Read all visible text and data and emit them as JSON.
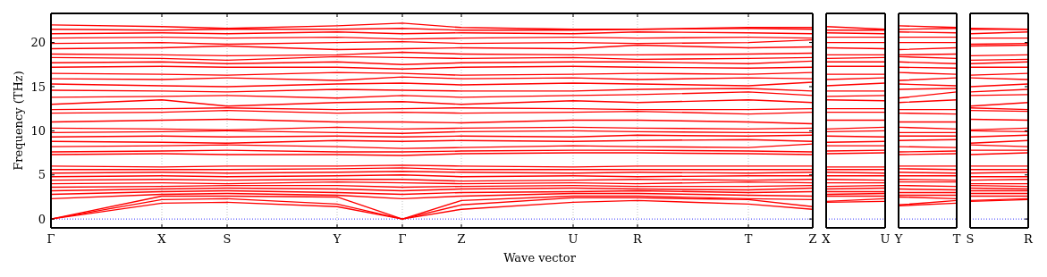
{
  "chart_data": [
    {
      "type": "line",
      "xlabel": "Wave vector",
      "ylabel": "Frequency (THz)",
      "color": "#ff0000",
      "line_style": "solid",
      "grid": "x",
      "ylim": [
        -1,
        23.3
      ],
      "yticks": [
        0,
        5,
        10,
        15,
        20
      ],
      "categories": [
        "Γ",
        "X",
        "S",
        "Y",
        "Γ",
        "Z",
        "U",
        "R",
        "T",
        "Z"
      ],
      "ref_lines": [
        {
          "axis": "y",
          "value": 0,
          "color": "#0000ff",
          "line_style": "dotted"
        }
      ],
      "series": [
        {
          "values": [
            0,
            1.8,
            1.9,
            1.4,
            0,
            1.1,
            1.9,
            2.1,
            1.7,
            1.1
          ]
        },
        {
          "values": [
            0,
            2.2,
            2.3,
            1.7,
            0,
            1.6,
            2.4,
            2.4,
            2.2,
            1.4
          ]
        },
        {
          "values": [
            0,
            2.6,
            2.6,
            2.5,
            0,
            2.1,
            2.6,
            2.6,
            2.3,
            2.2
          ]
        },
        {
          "values": [
            2.3,
            2.8,
            2.9,
            2.7,
            2.3,
            2.6,
            2.9,
            2.9,
            2.7,
            2.6
          ]
        },
        {
          "values": [
            2.8,
            3.1,
            3.2,
            3.0,
            2.8,
            3.0,
            3.1,
            3.2,
            3.0,
            3.1
          ]
        },
        {
          "values": [
            3.2,
            3.4,
            3.5,
            3.4,
            3.2,
            3.4,
            3.5,
            3.4,
            3.3,
            3.5
          ]
        },
        {
          "values": [
            3.6,
            3.7,
            3.8,
            3.8,
            3.6,
            3.7,
            3.8,
            3.7,
            3.7,
            3.8
          ]
        },
        {
          "values": [
            4.0,
            4.1,
            4.0,
            4.2,
            4.1,
            4.0,
            4.1,
            4.0,
            4.2,
            4.1
          ]
        },
        {
          "values": [
            4.4,
            4.5,
            4.4,
            4.5,
            4.5,
            4.3,
            4.4,
            4.5,
            4.4,
            4.5
          ]
        },
        {
          "values": [
            4.8,
            4.9,
            4.8,
            4.9,
            5.0,
            4.8,
            4.9,
            4.8,
            4.9,
            4.9
          ]
        },
        {
          "values": [
            5.2,
            5.3,
            5.2,
            5.3,
            5.4,
            5.3,
            5.2,
            5.3,
            5.2,
            5.3
          ]
        },
        {
          "values": [
            5.6,
            5.6,
            5.6,
            5.7,
            5.8,
            5.6,
            5.6,
            5.6,
            5.6,
            5.6
          ]
        },
        {
          "values": [
            6.0,
            5.9,
            6.0,
            6.0,
            6.1,
            6.0,
            5.9,
            6.0,
            6.0,
            6.0
          ]
        },
        {
          "values": [
            7.3,
            7.4,
            7.3,
            7.3,
            7.2,
            7.4,
            7.5,
            7.5,
            7.4,
            7.3
          ]
        },
        {
          "values": [
            7.6,
            7.7,
            7.8,
            7.6,
            7.6,
            7.7,
            7.8,
            7.8,
            7.7,
            7.6
          ]
        },
        {
          "values": [
            8.2,
            8.3,
            8.4,
            8.2,
            8.0,
            8.1,
            8.3,
            8.2,
            8.1,
            8.5
          ]
        },
        {
          "values": [
            8.8,
            8.7,
            8.6,
            8.9,
            8.8,
            8.9,
            8.8,
            8.9,
            9.0,
            8.8
          ]
        },
        {
          "values": [
            9.3,
            9.4,
            9.3,
            9.4,
            9.3,
            9.4,
            9.3,
            9.5,
            9.4,
            9.5
          ]
        },
        {
          "values": [
            9.8,
            9.9,
            10.0,
            9.8,
            9.7,
            9.9,
            10.0,
            9.9,
            9.8,
            9.8
          ]
        },
        {
          "values": [
            10.3,
            10.2,
            10.1,
            10.4,
            10.2,
            10.3,
            10.4,
            10.3,
            10.2,
            10.3
          ]
        },
        {
          "values": [
            11.0,
            11.2,
            11.3,
            11.0,
            11.0,
            10.9,
            11.2,
            11.2,
            11.0,
            10.8
          ]
        },
        {
          "values": [
            12.0,
            12.1,
            12.3,
            12.0,
            12.1,
            12.0,
            12.1,
            12.2,
            11.9,
            12.1
          ]
        },
        {
          "values": [
            12.4,
            12.5,
            12.6,
            12.4,
            12.5,
            12.6,
            12.5,
            12.4,
            12.4,
            12.5
          ]
        },
        {
          "values": [
            13.0,
            13.5,
            12.8,
            13.2,
            13.3,
            13.0,
            13.4,
            13.2,
            13.5,
            13.2
          ]
        },
        {
          "values": [
            13.8,
            13.9,
            14.0,
            13.7,
            14.0,
            13.8,
            14.0,
            14.1,
            14.4,
            14.0
          ]
        },
        {
          "values": [
            14.6,
            14.5,
            14.4,
            14.7,
            14.6,
            14.5,
            14.5,
            14.7,
            14.8,
            14.5
          ]
        },
        {
          "values": [
            15.3,
            15.1,
            15.0,
            15.3,
            15.4,
            15.2,
            15.4,
            15.3,
            15.1,
            15.5
          ]
        },
        {
          "values": [
            15.9,
            15.8,
            16.0,
            15.7,
            16.1,
            15.9,
            16.0,
            15.8,
            16.0,
            15.9
          ]
        },
        {
          "values": [
            16.5,
            16.4,
            16.3,
            16.6,
            16.5,
            16.3,
            16.4,
            16.5,
            16.4,
            16.6
          ]
        },
        {
          "values": [
            17.2,
            17.3,
            17.2,
            17.2,
            17.0,
            17.2,
            17.3,
            17.2,
            17.1,
            17.2
          ]
        },
        {
          "values": [
            17.7,
            17.8,
            17.6,
            17.8,
            17.5,
            17.7,
            17.8,
            17.8,
            17.6,
            17.9
          ]
        },
        {
          "values": [
            18.3,
            18.2,
            18.0,
            18.4,
            18.3,
            18.2,
            18.3,
            18.1,
            18.2,
            18.3
          ]
        },
        {
          "values": [
            18.7,
            18.6,
            18.5,
            18.6,
            18.9,
            18.7,
            18.6,
            18.6,
            18.7,
            18.8
          ]
        },
        {
          "values": [
            19.3,
            19.4,
            19.6,
            19.2,
            19.3,
            19.4,
            19.3,
            19.7,
            19.4,
            19.5
          ]
        },
        {
          "values": [
            19.9,
            20.0,
            19.8,
            20.0,
            20.1,
            19.9,
            20.0,
            19.9,
            20.0,
            20.3
          ]
        },
        {
          "values": [
            20.5,
            20.6,
            20.5,
            20.6,
            20.4,
            20.5,
            20.6,
            20.5,
            20.6,
            20.5
          ]
        },
        {
          "values": [
            21.0,
            21.1,
            21.0,
            21.2,
            21.0,
            21.1,
            21.0,
            21.2,
            21.1,
            21.0
          ]
        },
        {
          "values": [
            21.5,
            21.4,
            21.5,
            21.5,
            21.6,
            21.4,
            21.4,
            21.5,
            21.6,
            21.5
          ]
        },
        {
          "values": [
            22.0,
            21.8,
            21.6,
            21.9,
            22.2,
            21.7,
            21.5,
            21.5,
            21.7,
            21.7
          ]
        }
      ]
    },
    {
      "type": "line",
      "color": "#ff0000",
      "line_style": "solid",
      "tick_labels": "x",
      "ylim": [
        -1,
        23.3
      ],
      "categories": [
        "X",
        "U"
      ],
      "ref_lines": [
        {
          "axis": "y",
          "value": 0,
          "color": "#0000ff",
          "line_style": "dotted"
        }
      ],
      "series": [
        {
          "values": [
            1.9,
            2.0
          ]
        },
        {
          "values": [
            2.0,
            2.3
          ]
        },
        {
          "values": [
            2.6,
            2.6
          ]
        },
        {
          "values": [
            2.8,
            2.9
          ]
        },
        {
          "values": [
            3.1,
            3.1
          ]
        },
        {
          "values": [
            3.4,
            3.5
          ]
        },
        {
          "values": [
            3.7,
            3.8
          ]
        },
        {
          "values": [
            4.1,
            4.1
          ]
        },
        {
          "values": [
            4.5,
            4.4
          ]
        },
        {
          "values": [
            4.9,
            4.9
          ]
        },
        {
          "values": [
            5.3,
            5.2
          ]
        },
        {
          "values": [
            5.6,
            5.6
          ]
        },
        {
          "values": [
            5.9,
            5.9
          ]
        },
        {
          "values": [
            7.4,
            7.5
          ]
        },
        {
          "values": [
            7.7,
            7.8
          ]
        },
        {
          "values": [
            8.3,
            8.3
          ]
        },
        {
          "values": [
            8.7,
            8.8
          ]
        },
        {
          "values": [
            9.4,
            9.3
          ]
        },
        {
          "values": [
            9.9,
            10.0
          ]
        },
        {
          "values": [
            10.2,
            10.4
          ]
        },
        {
          "values": [
            11.2,
            11.2
          ]
        },
        {
          "values": [
            12.1,
            12.1
          ]
        },
        {
          "values": [
            12.5,
            12.5
          ]
        },
        {
          "values": [
            13.5,
            13.4
          ]
        },
        {
          "values": [
            13.9,
            14.0
          ]
        },
        {
          "values": [
            14.5,
            14.5
          ]
        },
        {
          "values": [
            15.1,
            15.4
          ]
        },
        {
          "values": [
            15.8,
            16.0
          ]
        },
        {
          "values": [
            16.4,
            16.4
          ]
        },
        {
          "values": [
            17.3,
            17.3
          ]
        },
        {
          "values": [
            17.8,
            17.8
          ]
        },
        {
          "values": [
            18.2,
            18.3
          ]
        },
        {
          "values": [
            18.6,
            18.6
          ]
        },
        {
          "values": [
            19.4,
            19.3
          ]
        },
        {
          "values": [
            20.0,
            20.0
          ]
        },
        {
          "values": [
            20.6,
            20.6
          ]
        },
        {
          "values": [
            21.1,
            21.0
          ]
        },
        {
          "values": [
            21.4,
            21.4
          ]
        },
        {
          "values": [
            21.8,
            21.5
          ]
        }
      ]
    },
    {
      "type": "line",
      "color": "#ff0000",
      "line_style": "solid",
      "tick_labels": "x",
      "ylim": [
        -1,
        23.3
      ],
      "categories": [
        "Y",
        "T"
      ],
      "ref_lines": [
        {
          "axis": "y",
          "value": 0,
          "color": "#0000ff",
          "line_style": "dotted"
        }
      ],
      "series": [
        {
          "values": [
            1.5,
            1.8
          ]
        },
        {
          "values": [
            1.6,
            2.1
          ]
        },
        {
          "values": [
            2.5,
            2.3
          ]
        },
        {
          "values": [
            2.7,
            2.7
          ]
        },
        {
          "values": [
            3.0,
            3.0
          ]
        },
        {
          "values": [
            3.4,
            3.3
          ]
        },
        {
          "values": [
            3.8,
            3.7
          ]
        },
        {
          "values": [
            4.2,
            4.2
          ]
        },
        {
          "values": [
            4.5,
            4.4
          ]
        },
        {
          "values": [
            4.9,
            4.9
          ]
        },
        {
          "values": [
            5.3,
            5.2
          ]
        },
        {
          "values": [
            5.7,
            5.6
          ]
        },
        {
          "values": [
            6.0,
            6.0
          ]
        },
        {
          "values": [
            7.3,
            7.4
          ]
        },
        {
          "values": [
            7.6,
            7.7
          ]
        },
        {
          "values": [
            8.2,
            8.1
          ]
        },
        {
          "values": [
            8.9,
            9.0
          ]
        },
        {
          "values": [
            9.4,
            9.4
          ]
        },
        {
          "values": [
            9.8,
            9.8
          ]
        },
        {
          "values": [
            10.4,
            10.2
          ]
        },
        {
          "values": [
            11.0,
            11.0
          ]
        },
        {
          "values": [
            12.0,
            11.9
          ]
        },
        {
          "values": [
            12.4,
            12.4
          ]
        },
        {
          "values": [
            13.2,
            13.5
          ]
        },
        {
          "values": [
            13.7,
            14.4
          ]
        },
        {
          "values": [
            14.7,
            14.8
          ]
        },
        {
          "values": [
            15.3,
            15.1
          ]
        },
        {
          "values": [
            15.7,
            16.0
          ]
        },
        {
          "values": [
            16.6,
            16.4
          ]
        },
        {
          "values": [
            17.2,
            17.1
          ]
        },
        {
          "values": [
            17.8,
            17.6
          ]
        },
        {
          "values": [
            18.4,
            18.2
          ]
        },
        {
          "values": [
            18.6,
            18.7
          ]
        },
        {
          "values": [
            19.2,
            19.4
          ]
        },
        {
          "values": [
            20.0,
            20.0
          ]
        },
        {
          "values": [
            20.6,
            20.6
          ]
        },
        {
          "values": [
            21.2,
            21.1
          ]
        },
        {
          "values": [
            21.5,
            21.6
          ]
        },
        {
          "values": [
            21.9,
            21.7
          ]
        }
      ]
    },
    {
      "type": "line",
      "color": "#ff0000",
      "line_style": "solid",
      "tick_labels": "x",
      "ylim": [
        -1,
        23.3
      ],
      "yticks": [
        {
          "value": 0,
          "label": null
        },
        {
          "value": 5,
          "label": null
        },
        {
          "value": 10,
          "label": null
        },
        {
          "value": 15,
          "label": null
        },
        {
          "value": 20,
          "label": null
        }
      ],
      "categories": [
        "S",
        "R"
      ],
      "ref_lines": [
        {
          "axis": "y",
          "value": 0,
          "color": "#0000ff",
          "line_style": "dotted"
        }
      ],
      "series": [
        {
          "values": [
            2.0,
            2.2
          ]
        },
        {
          "values": [
            2.1,
            2.3
          ]
        },
        {
          "values": [
            2.6,
            2.6
          ]
        },
        {
          "values": [
            2.9,
            2.9
          ]
        },
        {
          "values": [
            3.2,
            3.2
          ]
        },
        {
          "values": [
            3.5,
            3.4
          ]
        },
        {
          "values": [
            3.8,
            3.7
          ]
        },
        {
          "values": [
            4.0,
            4.0
          ]
        },
        {
          "values": [
            4.4,
            4.5
          ]
        },
        {
          "values": [
            4.8,
            4.8
          ]
        },
        {
          "values": [
            5.2,
            5.3
          ]
        },
        {
          "values": [
            5.6,
            5.6
          ]
        },
        {
          "values": [
            6.0,
            6.0
          ]
        },
        {
          "values": [
            7.3,
            7.5
          ]
        },
        {
          "values": [
            7.8,
            7.8
          ]
        },
        {
          "values": [
            8.4,
            8.2
          ]
        },
        {
          "values": [
            8.6,
            8.9
          ]
        },
        {
          "values": [
            9.3,
            9.5
          ]
        },
        {
          "values": [
            10.0,
            9.9
          ]
        },
        {
          "values": [
            10.1,
            10.3
          ]
        },
        {
          "values": [
            11.3,
            11.2
          ]
        },
        {
          "values": [
            12.3,
            12.2
          ]
        },
        {
          "values": [
            12.6,
            12.4
          ]
        },
        {
          "values": [
            12.8,
            13.2
          ]
        },
        {
          "values": [
            14.0,
            14.1
          ]
        },
        {
          "values": [
            14.4,
            14.7
          ]
        },
        {
          "values": [
            15.0,
            15.3
          ]
        },
        {
          "values": [
            16.0,
            15.8
          ]
        },
        {
          "values": [
            16.3,
            16.5
          ]
        },
        {
          "values": [
            17.2,
            17.2
          ]
        },
        {
          "values": [
            17.6,
            17.8
          ]
        },
        {
          "values": [
            18.0,
            18.1
          ]
        },
        {
          "values": [
            18.5,
            18.6
          ]
        },
        {
          "values": [
            19.6,
            19.7
          ]
        },
        {
          "values": [
            19.8,
            19.9
          ]
        },
        {
          "values": [
            20.5,
            20.5
          ]
        },
        {
          "values": [
            21.0,
            21.2
          ]
        },
        {
          "values": [
            21.5,
            21.5
          ]
        },
        {
          "values": [
            21.6,
            21.5
          ]
        }
      ]
    }
  ]
}
